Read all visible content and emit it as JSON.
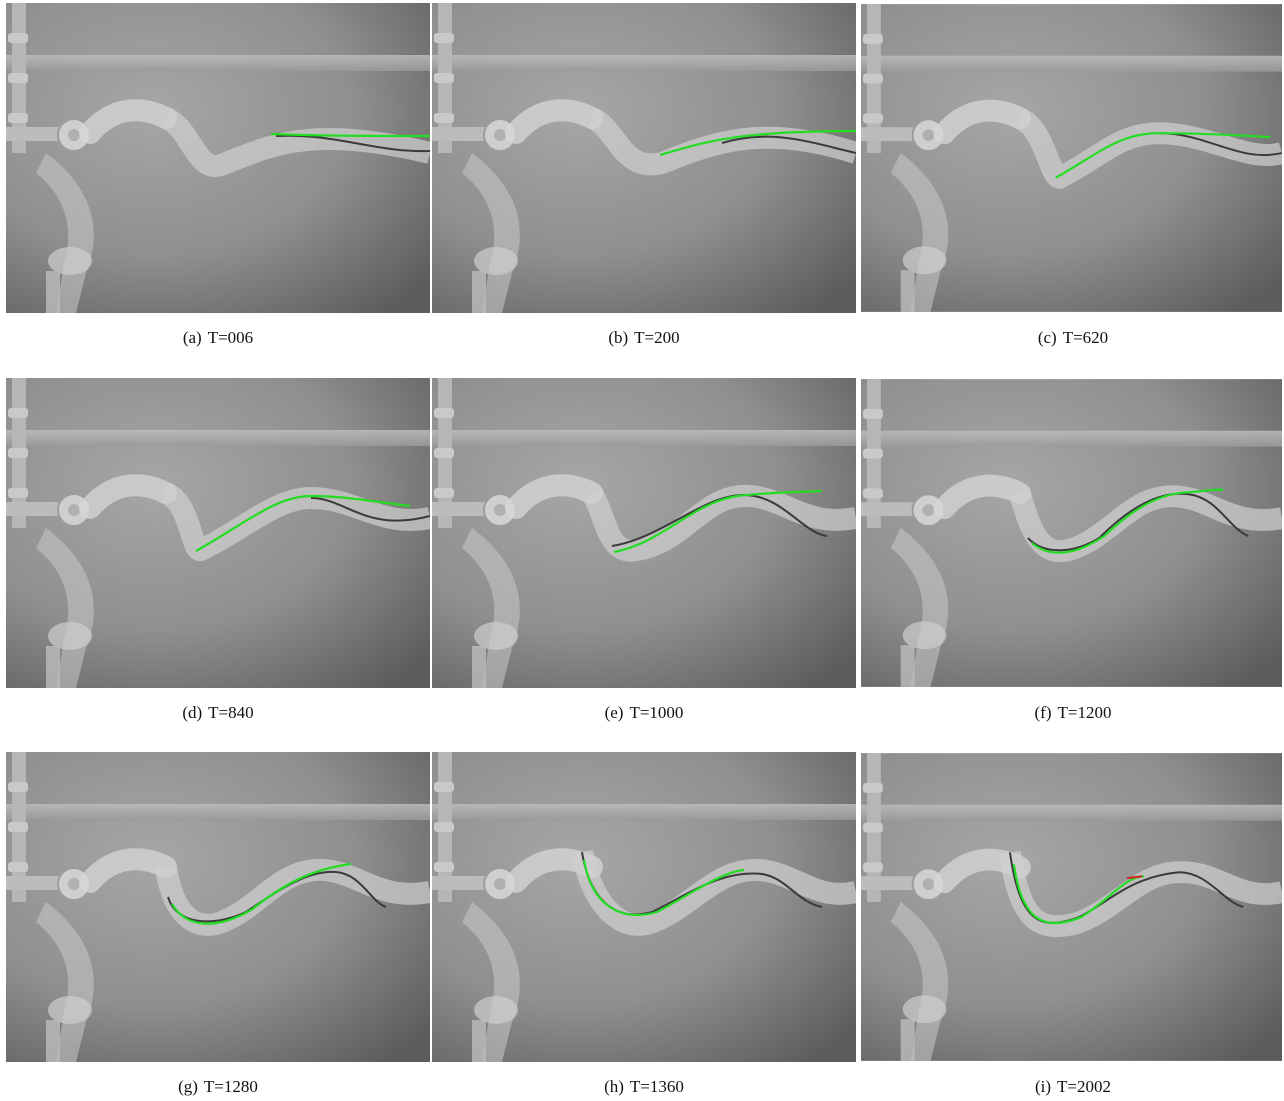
{
  "figures": [
    {
      "label": "(a)",
      "time": "T=006"
    },
    {
      "label": "(b)",
      "time": "T=200"
    },
    {
      "label": "(c)",
      "time": "T=620"
    },
    {
      "label": "(d)",
      "time": "T=840"
    },
    {
      "label": "(e)",
      "time": "T=1000"
    },
    {
      "label": "(f)",
      "time": "T=1200"
    },
    {
      "label": "(g)",
      "time": "T=1280"
    },
    {
      "label": "(h)",
      "time": "T=1360"
    },
    {
      "label": "(i)",
      "time": "T=2002"
    }
  ],
  "colors": {
    "tracking_curve": "#22dd22",
    "tendril_dark": "#3a3a3a",
    "photo_background": "#8e8e8e"
  }
}
